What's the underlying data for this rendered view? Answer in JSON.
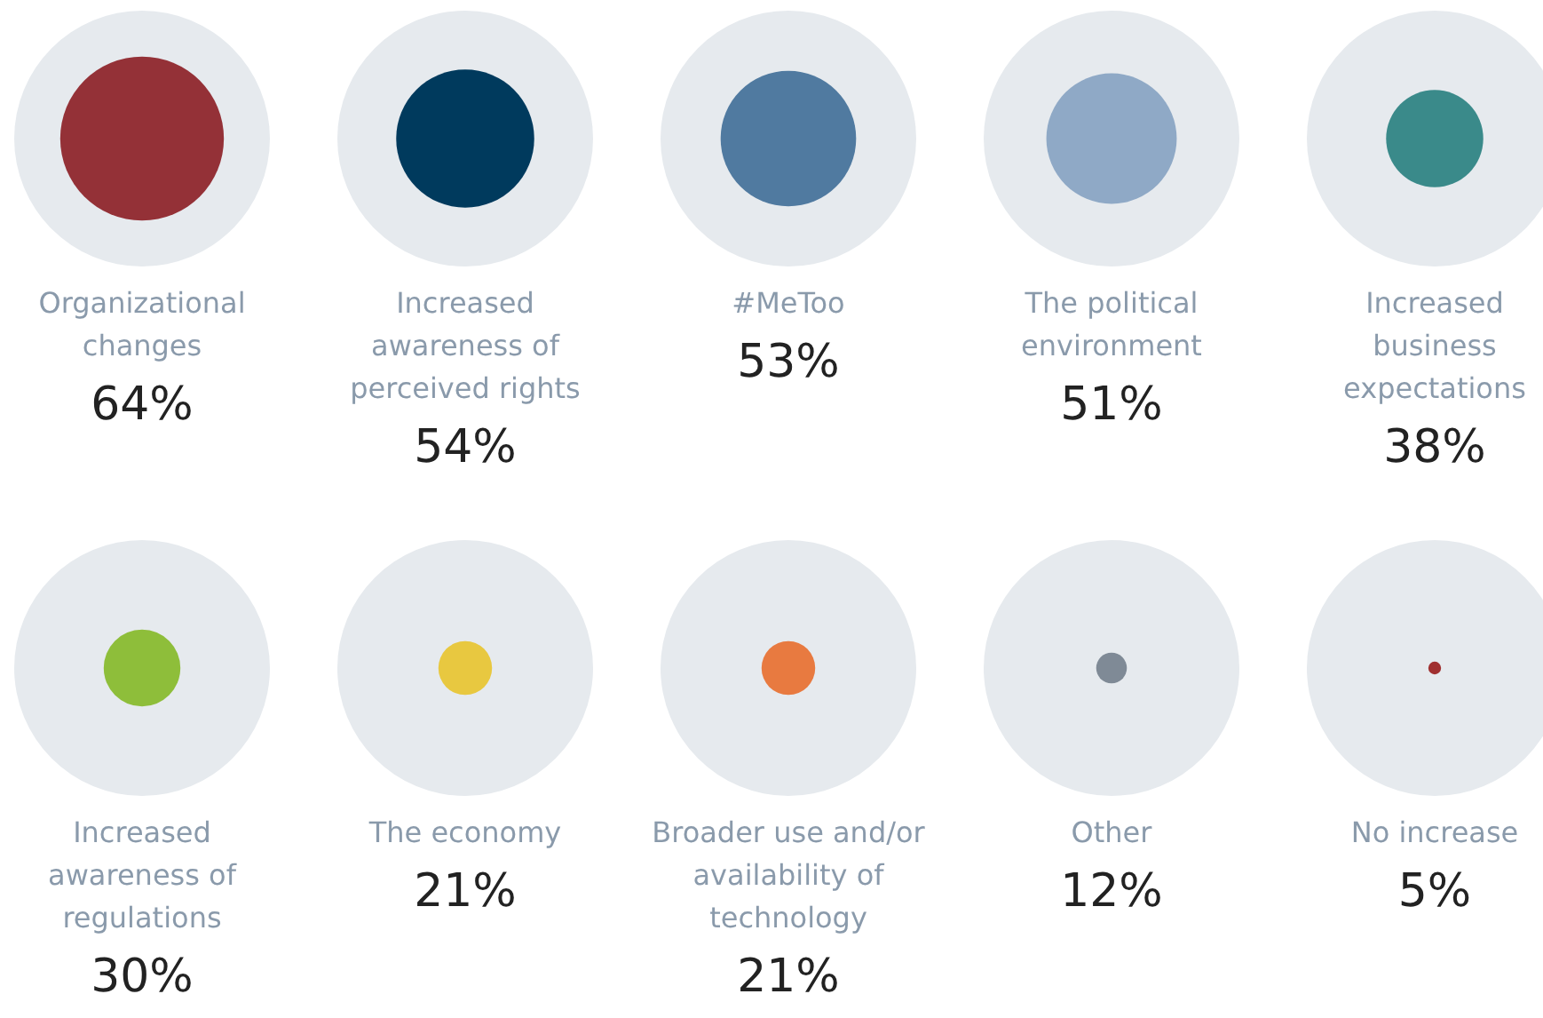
{
  "chart_data": {
    "type": "other",
    "categories": [
      "Organizational\nchanges",
      "Increased\nawareness of\nperceived rights",
      "#MeToo",
      "The political\nenvironment",
      "Increased\nbusiness\nexpectations",
      "Increased\nawareness of\nregulations",
      "The economy",
      "Broader use and/or\navailability of\ntechnology",
      "Other",
      "No increase"
    ],
    "values": [
      64,
      54,
      53,
      51,
      38,
      30,
      21,
      21,
      12,
      5
    ],
    "colors": [
      "#943137",
      "#003a5d",
      "#507aa0",
      "#8fa9c6",
      "#3a8a8a",
      "#8ebe3a",
      "#e8c840",
      "#e87a40",
      "#7f8a96",
      "#a03030"
    ],
    "value_labels": [
      "64%",
      "54%",
      "53%",
      "51%",
      "38%",
      "30%",
      "21%",
      "21%",
      "12%",
      "5%"
    ]
  }
}
